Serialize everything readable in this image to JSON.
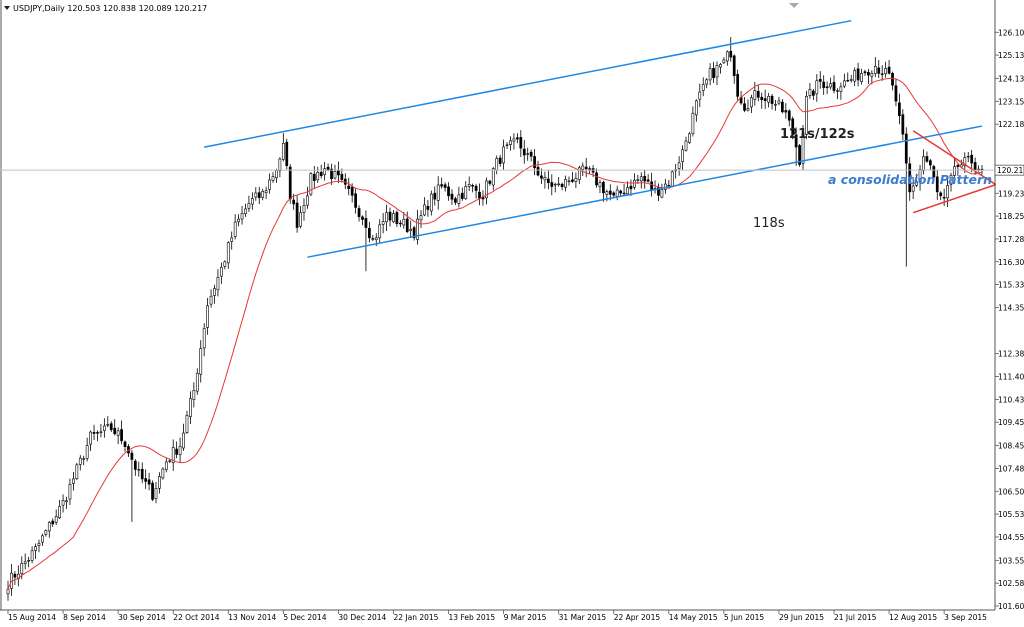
{
  "chart_data": {
    "type": "candlestick",
    "symbol_header": "USDJPY,Daily  120.503 120.838 120.089 120.217",
    "last_price_label": "120.217",
    "last_price": 120.217,
    "ylim": [
      101.605,
      126.8
    ],
    "y_ticks": [
      {
        "value": 126.105,
        "label": "126.105"
      },
      {
        "value": 125.13,
        "label": "125.130"
      },
      {
        "value": 124.13,
        "label": "124.130"
      },
      {
        "value": 123.155,
        "label": "123.155"
      },
      {
        "value": 122.18,
        "label": "122.180"
      },
      {
        "value": 120.217,
        "label": "120.217"
      },
      {
        "value": 119.23,
        "label": "119.230"
      },
      {
        "value": 118.255,
        "label": "118.255"
      },
      {
        "value": 117.28,
        "label": "117.280"
      },
      {
        "value": 116.305,
        "label": "116.305"
      },
      {
        "value": 115.33,
        "label": "115.330"
      },
      {
        "value": 114.355,
        "label": "114.355"
      },
      {
        "value": 112.38,
        "label": "112.380"
      },
      {
        "value": 111.405,
        "label": "111.405"
      },
      {
        "value": 110.43,
        "label": "110.430"
      },
      {
        "value": 109.455,
        "label": "109.455"
      },
      {
        "value": 108.455,
        "label": "108.455"
      },
      {
        "value": 107.48,
        "label": "107.480"
      },
      {
        "value": 106.505,
        "label": "106.505"
      },
      {
        "value": 105.53,
        "label": "105.530"
      },
      {
        "value": 104.555,
        "label": "104.555"
      },
      {
        "value": 103.555,
        "label": "103.555"
      },
      {
        "value": 102.58,
        "label": "102.580"
      },
      {
        "value": 101.605,
        "label": "101.605"
      }
    ],
    "x_ticks": [
      {
        "index": 0,
        "label": "15 Aug 2014"
      },
      {
        "index": 16,
        "label": "8 Sep 2014"
      },
      {
        "index": 32,
        "label": "30 Sep 2014"
      },
      {
        "index": 48,
        "label": "22 Oct 2014"
      },
      {
        "index": 64,
        "label": "13 Nov 2014"
      },
      {
        "index": 80,
        "label": "5 Dec 2014"
      },
      {
        "index": 96,
        "label": "30 Dec 2014"
      },
      {
        "index": 112,
        "label": "22 Jan 2015"
      },
      {
        "index": 128,
        "label": "13 Feb 2015"
      },
      {
        "index": 144,
        "label": "9 Mar 2015"
      },
      {
        "index": 160,
        "label": "31 Mar 2015"
      },
      {
        "index": 176,
        "label": "22 Apr 2015"
      },
      {
        "index": 192,
        "label": "14 May 2015"
      },
      {
        "index": 208,
        "label": "5 Jun 2015"
      },
      {
        "index": 224,
        "label": "29 Jun 2015"
      },
      {
        "index": 240,
        "label": "21 Jul 2015"
      },
      {
        "index": 256,
        "label": "12 Aug 2015"
      },
      {
        "index": 272,
        "label": "3 Sep 2015"
      }
    ],
    "bar_count": 284,
    "price_anchors": [
      [
        0,
        102.6
      ],
      [
        8,
        104.0
      ],
      [
        16,
        106.0
      ],
      [
        24,
        108.8
      ],
      [
        30,
        109.2
      ],
      [
        34,
        108.6
      ],
      [
        38,
        107.2
      ],
      [
        42,
        106.4
      ],
      [
        46,
        107.8
      ],
      [
        50,
        108.5
      ],
      [
        54,
        110.8
      ],
      [
        58,
        114.5
      ],
      [
        62,
        116.0
      ],
      [
        66,
        117.8
      ],
      [
        70,
        118.8
      ],
      [
        74,
        119.2
      ],
      [
        78,
        120.3
      ],
      [
        80,
        121.2
      ],
      [
        82,
        119.2
      ],
      [
        84,
        118.0
      ],
      [
        88,
        119.8
      ],
      [
        92,
        120.3
      ],
      [
        96,
        119.8
      ],
      [
        100,
        119.0
      ],
      [
        104,
        118.0
      ],
      [
        106,
        117.2
      ],
      [
        110,
        118.3
      ],
      [
        114,
        118.0
      ],
      [
        118,
        117.6
      ],
      [
        122,
        118.8
      ],
      [
        126,
        119.5
      ],
      [
        130,
        119.0
      ],
      [
        134,
        119.5
      ],
      [
        138,
        119.2
      ],
      [
        142,
        120.5
      ],
      [
        144,
        121.0
      ],
      [
        148,
        121.4
      ],
      [
        152,
        120.6
      ],
      [
        156,
        119.7
      ],
      [
        160,
        119.5
      ],
      [
        164,
        119.9
      ],
      [
        168,
        120.2
      ],
      [
        172,
        119.6
      ],
      [
        176,
        119.0
      ],
      [
        180,
        119.5
      ],
      [
        184,
        119.9
      ],
      [
        188,
        119.3
      ],
      [
        192,
        119.7
      ],
      [
        196,
        121.0
      ],
      [
        200,
        123.0
      ],
      [
        204,
        124.3
      ],
      [
        208,
        124.8
      ],
      [
        210,
        125.3
      ],
      [
        212,
        123.6
      ],
      [
        214,
        123.0
      ],
      [
        218,
        123.5
      ],
      [
        222,
        123.2
      ],
      [
        226,
        122.6
      ],
      [
        228,
        121.8
      ],
      [
        230,
        120.7
      ],
      [
        232,
        123.2
      ],
      [
        236,
        124.0
      ],
      [
        240,
        123.8
      ],
      [
        244,
        124.0
      ],
      [
        248,
        124.4
      ],
      [
        252,
        124.7
      ],
      [
        256,
        124.2
      ],
      [
        258,
        123.2
      ],
      [
        260,
        121.5
      ],
      [
        262,
        119.2
      ],
      [
        264,
        119.8
      ],
      [
        266,
        120.8
      ],
      [
        268,
        120.4
      ],
      [
        270,
        119.2
      ],
      [
        272,
        118.9
      ],
      [
        274,
        119.8
      ],
      [
        276,
        120.4
      ],
      [
        280,
        120.6
      ],
      [
        283,
        120.217
      ]
    ],
    "spikes": [
      {
        "index": 261,
        "low": 116.1
      },
      {
        "index": 210,
        "high": 125.9
      },
      {
        "index": 80,
        "high": 121.8
      },
      {
        "index": 104,
        "low": 115.9
      },
      {
        "index": 36,
        "low": 105.2
      },
      {
        "index": 229,
        "low": 120.4
      }
    ],
    "ma_period": 20,
    "trendlines": [
      {
        "name": "channel-upper",
        "color": "#1e88e5",
        "from": [
          57,
          121.2
        ],
        "to": [
          245,
          126.6
        ]
      },
      {
        "name": "channel-lower",
        "color": "#1e88e5",
        "from": [
          87,
          116.5
        ],
        "to": [
          283,
          122.1
        ]
      }
    ],
    "triangle": {
      "color": "#e53935",
      "top": [
        263,
        121.9
      ],
      "bottom": [
        263,
        118.4
      ],
      "apex": [
        287,
        119.6
      ]
    },
    "annotations": [
      {
        "text": "121s/122s",
        "color": "#222222",
        "style": "bold"
      },
      {
        "text": "a consolidation Pattern",
        "color": "#3b7bd1",
        "style": "italic"
      },
      {
        "text": "118s",
        "color": "#222222",
        "style": "normal"
      }
    ],
    "colors": {
      "bull": "#ffffff",
      "bear": "#000000",
      "wick": "#000000",
      "ma": "#e53935",
      "channel": "#1e88e5",
      "triangle": "#e53935",
      "label_bg": "#ffffff",
      "axis": "#555555"
    }
  }
}
